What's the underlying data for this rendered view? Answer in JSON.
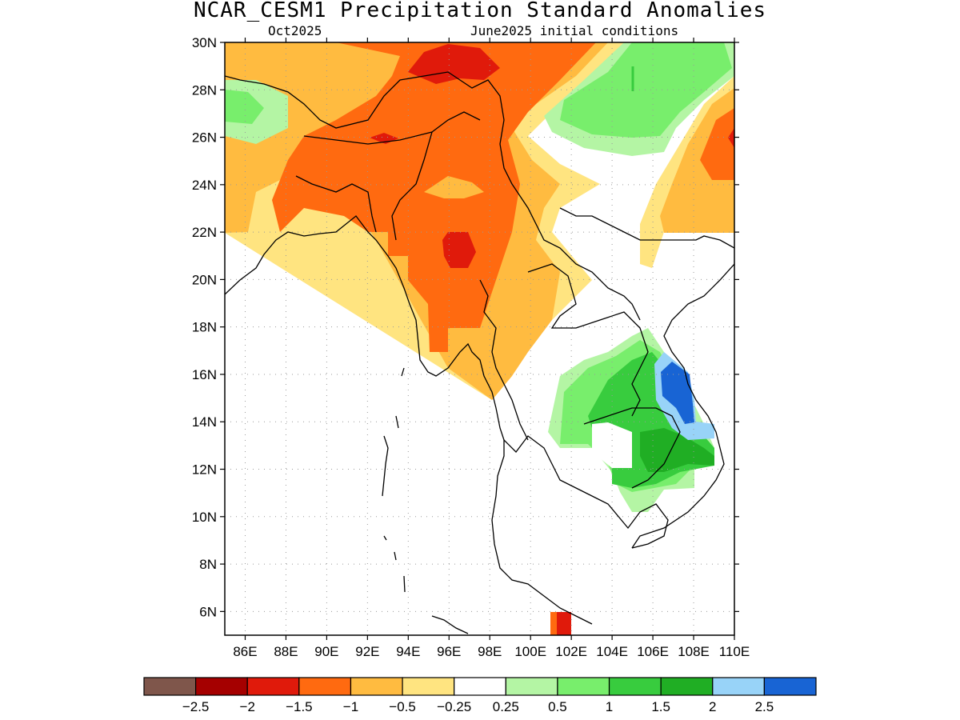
{
  "title": "NCAR_CESM1 Precipitation Standard Anomalies",
  "subtitle_left": "Oct2025",
  "subtitle_right": "June2025 initial conditions",
  "map": {
    "lon_range": [
      85,
      110
    ],
    "lat_range": [
      5,
      30
    ],
    "lon_ticks": [
      "86E",
      "88E",
      "90E",
      "92E",
      "94E",
      "96E",
      "98E",
      "100E",
      "102E",
      "104E",
      "106E",
      "108E",
      "110E"
    ],
    "lat_ticks": [
      "30N",
      "28N",
      "26N",
      "24N",
      "22N",
      "20N",
      "18N",
      "16N",
      "14N",
      "12N",
      "10N",
      "8N",
      "6N"
    ]
  },
  "colorbar": {
    "colors": [
      "#7f564b",
      "#a50000",
      "#e01a0b",
      "#ff6a10",
      "#ffbb40",
      "#ffe480",
      "#ffffff",
      "#b4f5a4",
      "#78ee6c",
      "#38cc3e",
      "#20ae24",
      "#98d3f8",
      "#1864d4"
    ],
    "labels": [
      "−2.5",
      "−2",
      "−1.5",
      "−1",
      "−0.5",
      "−0.25",
      "0.25",
      "0.5",
      "1",
      "1.5",
      "2",
      "2.5"
    ]
  },
  "colors": {
    "strong_neg": "#e01a0b",
    "neg": "#ff6a10",
    "mod_neg": "#ffbb40",
    "weak_neg": "#ffe480",
    "weak_pos": "#b4f5a4",
    "pos": "#78ee6c",
    "mod_pos": "#38cc3e",
    "strong_pos": "#20ae24",
    "very_pos": "#98d3f8",
    "extreme_pos": "#1864d4"
  }
}
